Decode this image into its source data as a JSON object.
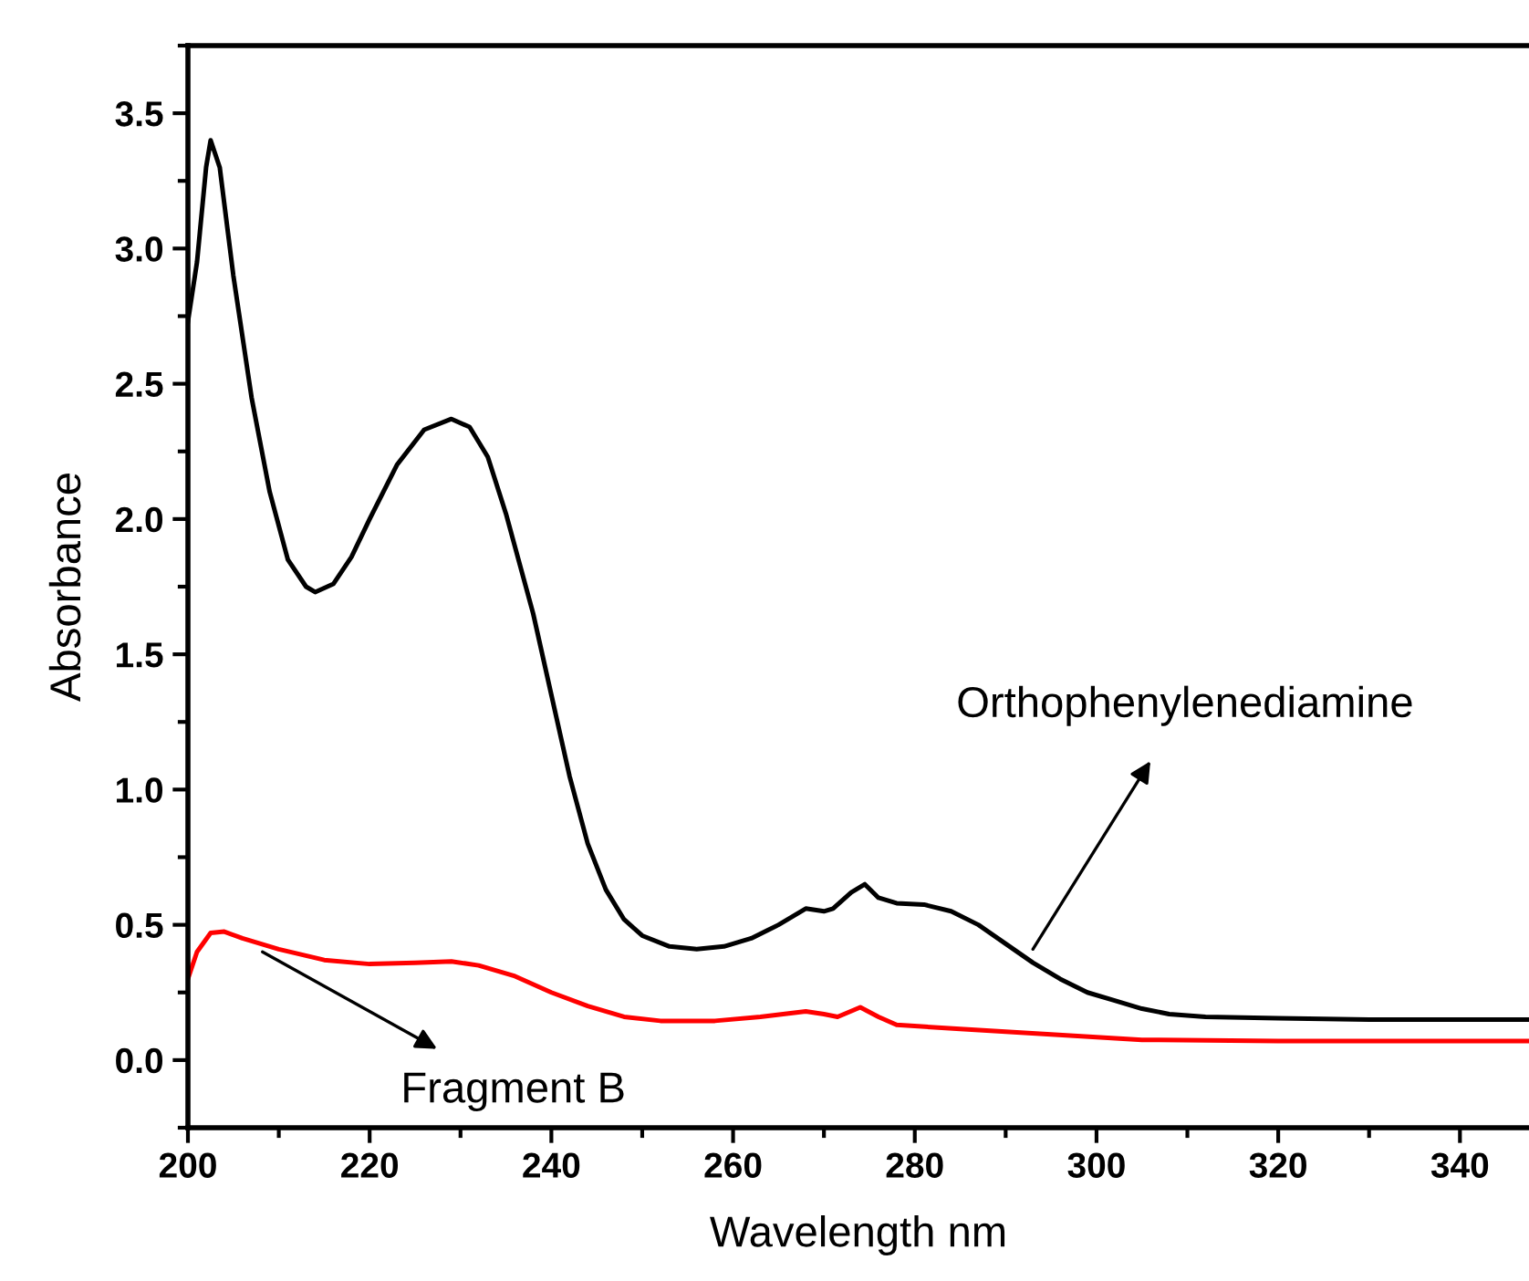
{
  "chart_data": {
    "type": "line",
    "xlabel": "Wavelength nm",
    "ylabel": "Absorbance",
    "xlim": [
      200,
      347.6
    ],
    "ylim": [
      -0.25,
      3.75
    ],
    "xticks": [
      200,
      220,
      240,
      260,
      280,
      300,
      320,
      340
    ],
    "yticks": [
      {
        "value": 0,
        "label": "0.0"
      },
      0.5,
      {
        "value": 1,
        "label": "1.0"
      },
      1.5,
      {
        "value": 2,
        "label": "2.0"
      },
      2.5,
      {
        "value": 3,
        "label": "3.0"
      },
      3.5
    ],
    "grid": false,
    "legend": false,
    "marker": "none",
    "line_style": "solid",
    "series": [
      {
        "color": "#000000",
        "x": [
          200,
          201,
          202,
          202.5,
          203.5,
          205,
          207,
          209,
          211,
          213,
          214,
          216,
          218,
          220,
          223,
          226,
          229,
          231,
          233,
          235,
          238,
          240,
          242,
          244,
          246,
          248,
          250,
          253,
          256,
          259,
          262,
          265,
          268,
          270,
          271,
          273,
          274.5,
          276,
          278,
          281,
          284,
          287,
          290,
          293,
          296,
          299,
          302,
          305,
          308,
          312,
          320,
          330,
          340,
          347.6
        ],
        "values": [
          2.73,
          2.95,
          3.3,
          3.4,
          3.3,
          2.9,
          2.45,
          2.1,
          1.85,
          1.75,
          1.73,
          1.76,
          1.86,
          2.0,
          2.2,
          2.33,
          2.37,
          2.34,
          2.23,
          2.02,
          1.65,
          1.35,
          1.05,
          0.8,
          0.63,
          0.52,
          0.46,
          0.42,
          0.41,
          0.42,
          0.45,
          0.5,
          0.56,
          0.55,
          0.56,
          0.62,
          0.65,
          0.6,
          0.58,
          0.575,
          0.55,
          0.5,
          0.43,
          0.36,
          0.3,
          0.25,
          0.22,
          0.19,
          0.17,
          0.16,
          0.155,
          0.15,
          0.15,
          0.15
        ]
      },
      {
        "color": "#ff0000",
        "x": [
          200,
          201,
          202.5,
          204,
          206,
          210,
          215,
          220,
          225,
          229,
          232,
          236,
          240,
          244,
          248,
          252,
          258,
          263,
          268,
          270,
          271.5,
          274,
          276,
          278,
          285,
          295,
          305,
          320,
          347.6
        ],
        "values": [
          0.3,
          0.4,
          0.47,
          0.475,
          0.45,
          0.41,
          0.37,
          0.355,
          0.36,
          0.365,
          0.35,
          0.31,
          0.25,
          0.2,
          0.16,
          0.145,
          0.145,
          0.16,
          0.18,
          0.17,
          0.16,
          0.195,
          0.16,
          0.13,
          0.115,
          0.095,
          0.075,
          0.07,
          0.07
        ]
      }
    ],
    "annotations": [
      {
        "text": "Orthophenylenediamine",
        "x": 293,
        "y": 0.41
      },
      {
        "text": "Fragment B",
        "x": 208.2,
        "y": 0.4
      }
    ]
  }
}
